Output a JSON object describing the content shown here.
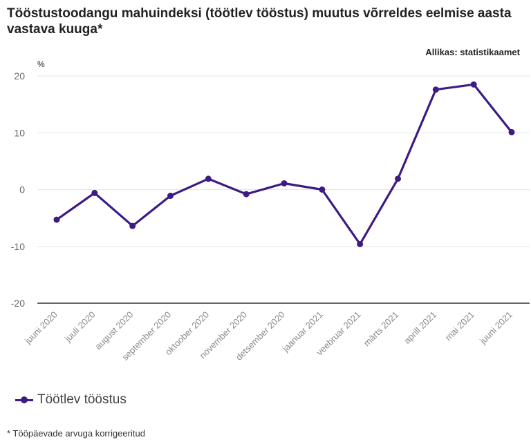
{
  "title": "Tööstustoodangu mahuindeksi (töötlev tööstus) muutus võrreldes eelmise aasta vastava kuuga*",
  "source": "Allikas: statistikaamet",
  "unit": "%",
  "footnote": "* Tööpäevade arvuga korrigeeritud",
  "colors": {
    "series": "#3d1a84",
    "grid": "#e6e6e6",
    "axis": "#333333"
  },
  "chart_data": {
    "type": "line",
    "title": "Tööstustoodangu mahuindeksi (töötlev tööstus) muutus võrreldes eelmise aasta vastava kuuga*",
    "ylabel": "%",
    "xlabel": "",
    "ylim": [
      -20,
      20
    ],
    "yticks": [
      -20,
      -10,
      0,
      10,
      20
    ],
    "grid": true,
    "legend": "bottom-left",
    "categories": [
      "juuni 2020",
      "juuli 2020",
      "august 2020",
      "september 2020",
      "oktoober 2020",
      "november 2020",
      "detsember 2020",
      "jaanuar 2021",
      "veebruar 2021",
      "märts 2021",
      "aprill 2021",
      "mai 2021",
      "juuni 2021"
    ],
    "series": [
      {
        "name": "Töötlev tööstus",
        "values": [
          -5.3,
          -0.6,
          -6.4,
          -1.1,
          1.9,
          -0.8,
          1.1,
          0.0,
          -9.6,
          1.9,
          17.6,
          18.5,
          10.1
        ]
      }
    ]
  }
}
